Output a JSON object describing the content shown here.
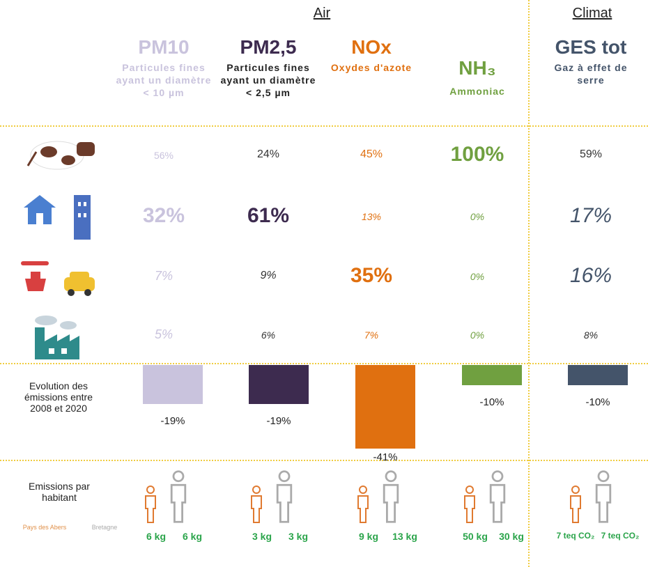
{
  "header": {
    "air": "Air",
    "climat": "Climat"
  },
  "columns": [
    {
      "title": "PM10",
      "subtitle": "Particules fines ayant un diamètre < 10 µm",
      "color": "#c9c3dd"
    },
    {
      "title": "PM2,5",
      "subtitle": "Particules fines ayant un diamètre < 2,5 µm",
      "color": "#3d2b4f"
    },
    {
      "title": "NOx",
      "subtitle": "Oxydes d'azote",
      "color": "#e07010"
    },
    {
      "title": "NH₃",
      "subtitle": "Ammoniac",
      "color": "#70a040"
    },
    {
      "title": "GES tot",
      "subtitle": "Gaz à effet de serre",
      "color": "#44546a"
    }
  ],
  "shares": [
    [
      "56%",
      "24%",
      "45%",
      "100%",
      "59%"
    ],
    [
      "32%",
      "61%",
      "13%",
      "0%",
      "17%"
    ],
    [
      "7%",
      "9%",
      "35%",
      "0%",
      "16%"
    ],
    [
      "5%",
      "6%",
      "7%",
      "0%",
      "8%"
    ]
  ],
  "evolution": {
    "label": "Evolution des émissions entre 2008 et 2020",
    "values": [
      -19,
      -19,
      -41,
      -10,
      -10
    ],
    "value_labels": [
      "-19%",
      "-19%",
      "-41%",
      "-10%",
      "-10%"
    ]
  },
  "per_capita": {
    "label": "Emissions par habitant",
    "legend": [
      "Pays des Abers",
      "Bretagne"
    ],
    "values": [
      [
        "6 kg",
        "6 kg"
      ],
      [
        "3 kg",
        "3 kg"
      ],
      [
        "9 kg",
        "13 kg"
      ],
      [
        "50 kg",
        "30 kg"
      ],
      [
        "7 teq CO₂",
        "7 teq CO₂"
      ]
    ]
  }
}
